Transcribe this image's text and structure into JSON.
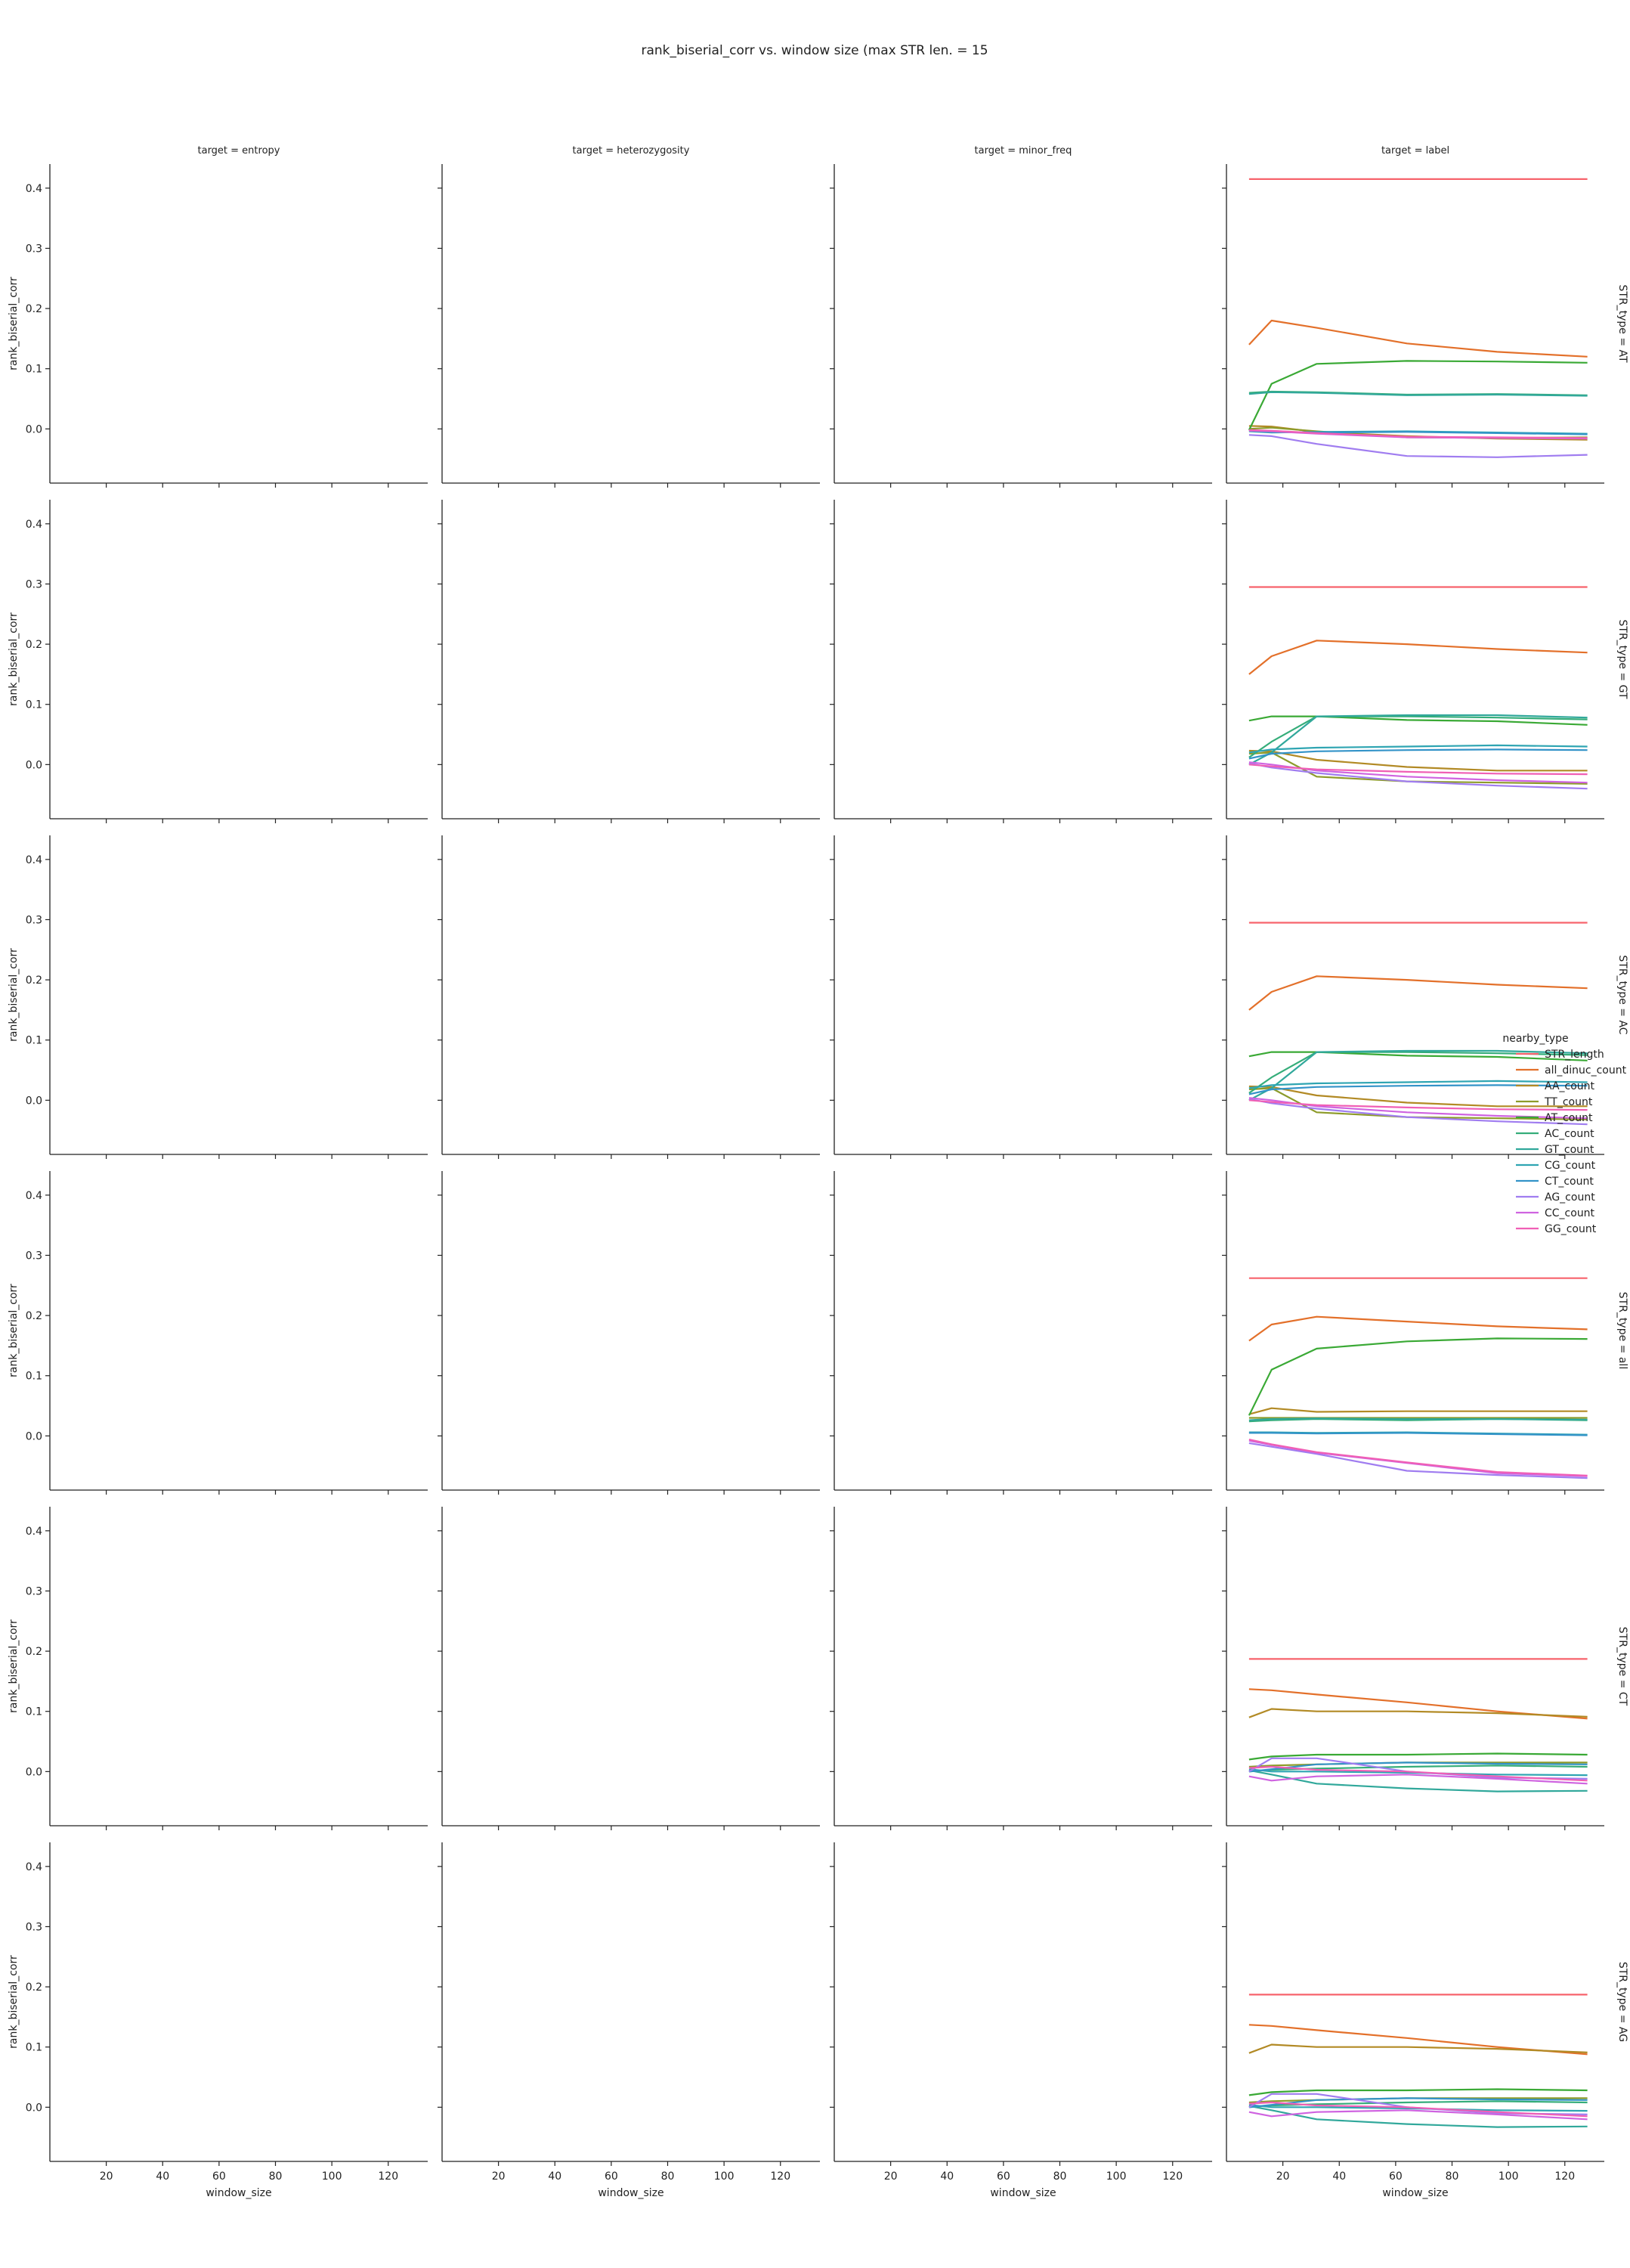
{
  "chart_data": {
    "type": "line",
    "title": "rank_biserial_corr vs. window size (max STR len. = 15",
    "xlabel": "window_size",
    "ylabel": "rank_biserial_corr",
    "xlim": [
      0,
      134
    ],
    "ylim": [
      -0.09,
      0.44
    ],
    "x_ticks": [
      20,
      40,
      60,
      80,
      100,
      120
    ],
    "y_ticks": [
      0.0,
      0.1,
      0.2,
      0.3,
      0.4
    ],
    "col_titles": [
      "target = entropy",
      "target = heterozygosity",
      "target = minor_freq",
      "target = label"
    ],
    "row_titles": [
      "STR_type = AT",
      "STR_type = GT",
      "STR_type = AC",
      "STR_type = all",
      "STR_type = CT",
      "STR_type = AG"
    ],
    "legend": {
      "title": "nearby_type",
      "position": "center-right",
      "entries": [
        {
          "label": "STR_length",
          "color": "#f7636c"
        },
        {
          "label": "all_dinuc_count",
          "color": "#e3702a"
        },
        {
          "label": "AA_count",
          "color": "#b28a25"
        },
        {
          "label": "TT_count",
          "color": "#8d9b2a"
        },
        {
          "label": "AT_count",
          "color": "#3aa935"
        },
        {
          "label": "AC_count",
          "color": "#35ad7a"
        },
        {
          "label": "GT_count",
          "color": "#31a89b"
        },
        {
          "label": "CG_count",
          "color": "#2fa5b2"
        },
        {
          "label": "CT_count",
          "color": "#3393c8"
        },
        {
          "label": "AG_count",
          "color": "#a07df0"
        },
        {
          "label": "CC_count",
          "color": "#cf63e0"
        },
        {
          "label": "GG_count",
          "color": "#f05fb5"
        }
      ]
    },
    "x": [
      8,
      16,
      32,
      64,
      96,
      128
    ],
    "facets": [
      {
        "row": "STR_type = AT",
        "col": "target = label",
        "series": [
          {
            "name": "STR_length",
            "values": [
              0.415,
              0.415,
              0.415,
              0.415,
              0.415,
              0.415
            ]
          },
          {
            "name": "all_dinuc_count",
            "values": [
              0.14,
              0.18,
              0.168,
              0.142,
              0.128,
              0.12
            ]
          },
          {
            "name": "AA_count",
            "values": [
              0.005,
              0.004,
              -0.005,
              -0.012,
              -0.016,
              -0.018
            ]
          },
          {
            "name": "TT_count",
            "values": [
              0.0,
              0.002,
              -0.004,
              -0.014,
              -0.015,
              -0.014
            ]
          },
          {
            "name": "AT_count",
            "values": [
              -0.002,
              0.075,
              0.108,
              0.113,
              0.112,
              0.11
            ]
          },
          {
            "name": "AC_count",
            "values": [
              0.06,
              0.062,
              0.061,
              0.057,
              0.058,
              0.056
            ]
          },
          {
            "name": "GT_count",
            "values": [
              0.058,
              0.061,
              0.06,
              0.056,
              0.057,
              0.055
            ]
          },
          {
            "name": "CG_count",
            "values": [
              -0.004,
              -0.006,
              -0.005,
              -0.004,
              -0.006,
              -0.008
            ]
          },
          {
            "name": "CT_count",
            "values": [
              -0.003,
              -0.005,
              -0.006,
              -0.005,
              -0.007,
              -0.009
            ]
          },
          {
            "name": "AG_count",
            "values": [
              -0.01,
              -0.012,
              -0.025,
              -0.045,
              -0.047,
              -0.043
            ]
          },
          {
            "name": "CC_count",
            "values": [
              -0.003,
              -0.004,
              -0.008,
              -0.014,
              -0.015,
              -0.016
            ]
          },
          {
            "name": "GG_count",
            "values": [
              -0.002,
              -0.003,
              -0.007,
              -0.013,
              -0.014,
              -0.015
            ]
          }
        ]
      },
      {
        "row": "STR_type = GT",
        "col": "target = label",
        "series": [
          {
            "name": "STR_length",
            "values": [
              0.295,
              0.295,
              0.295,
              0.295,
              0.295,
              0.295
            ]
          },
          {
            "name": "all_dinuc_count",
            "values": [
              0.15,
              0.18,
              0.206,
              0.2,
              0.192,
              0.186
            ]
          },
          {
            "name": "AA_count",
            "values": [
              0.023,
              0.022,
              0.008,
              -0.004,
              -0.01,
              -0.01
            ]
          },
          {
            "name": "TT_count",
            "values": [
              0.018,
              0.02,
              -0.02,
              -0.028,
              -0.03,
              -0.032
            ]
          },
          {
            "name": "AT_count",
            "values": [
              0.073,
              0.08,
              0.08,
              0.074,
              0.072,
              0.066
            ]
          },
          {
            "name": "AC_count",
            "values": [
              0.012,
              0.038,
              0.08,
              0.08,
              0.078,
              0.075
            ]
          },
          {
            "name": "GT_count",
            "values": [
              0.0,
              0.02,
              0.08,
              0.082,
              0.082,
              0.078
            ]
          },
          {
            "name": "CG_count",
            "values": [
              0.02,
              0.025,
              0.028,
              0.03,
              0.032,
              0.03
            ]
          },
          {
            "name": "CT_count",
            "values": [
              0.01,
              0.018,
              0.022,
              0.024,
              0.025,
              0.024
            ]
          },
          {
            "name": "AG_count",
            "values": [
              0.002,
              -0.005,
              -0.014,
              -0.028,
              -0.035,
              -0.04
            ]
          },
          {
            "name": "CC_count",
            "values": [
              0.004,
              0.0,
              -0.01,
              -0.02,
              -0.026,
              -0.03
            ]
          },
          {
            "name": "GG_count",
            "values": [
              0.0,
              -0.003,
              -0.008,
              -0.012,
              -0.015,
              -0.016
            ]
          }
        ]
      },
      {
        "row": "STR_type = AC",
        "col": "target = label",
        "series": [
          {
            "name": "STR_length",
            "values": [
              0.295,
              0.295,
              0.295,
              0.295,
              0.295,
              0.295
            ]
          },
          {
            "name": "all_dinuc_count",
            "values": [
              0.15,
              0.18,
              0.206,
              0.2,
              0.192,
              0.186
            ]
          },
          {
            "name": "AA_count",
            "values": [
              0.023,
              0.022,
              0.008,
              -0.004,
              -0.01,
              -0.01
            ]
          },
          {
            "name": "TT_count",
            "values": [
              0.018,
              0.02,
              -0.02,
              -0.028,
              -0.03,
              -0.032
            ]
          },
          {
            "name": "AT_count",
            "values": [
              0.073,
              0.08,
              0.08,
              0.074,
              0.072,
              0.066
            ]
          },
          {
            "name": "AC_count",
            "values": [
              0.012,
              0.038,
              0.08,
              0.08,
              0.078,
              0.075
            ]
          },
          {
            "name": "GT_count",
            "values": [
              0.0,
              0.02,
              0.08,
              0.082,
              0.082,
              0.078
            ]
          },
          {
            "name": "CG_count",
            "values": [
              0.02,
              0.025,
              0.028,
              0.03,
              0.032,
              0.03
            ]
          },
          {
            "name": "CT_count",
            "values": [
              0.01,
              0.018,
              0.022,
              0.024,
              0.025,
              0.024
            ]
          },
          {
            "name": "AG_count",
            "values": [
              0.002,
              -0.005,
              -0.014,
              -0.028,
              -0.035,
              -0.04
            ]
          },
          {
            "name": "CC_count",
            "values": [
              0.004,
              0.0,
              -0.01,
              -0.02,
              -0.026,
              -0.03
            ]
          },
          {
            "name": "GG_count",
            "values": [
              0.0,
              -0.003,
              -0.008,
              -0.012,
              -0.015,
              -0.016
            ]
          }
        ]
      },
      {
        "row": "STR_type = all",
        "col": "target = label",
        "series": [
          {
            "name": "STR_length",
            "values": [
              0.262,
              0.262,
              0.262,
              0.262,
              0.262,
              0.262
            ]
          },
          {
            "name": "all_dinuc_count",
            "values": [
              0.158,
              0.185,
              0.198,
              0.19,
              0.182,
              0.177
            ]
          },
          {
            "name": "AA_count",
            "values": [
              0.036,
              0.046,
              0.04,
              0.041,
              0.041,
              0.041
            ]
          },
          {
            "name": "TT_count",
            "values": [
              0.03,
              0.03,
              0.03,
              0.03,
              0.03,
              0.03
            ]
          },
          {
            "name": "AT_count",
            "values": [
              0.034,
              0.11,
              0.145,
              0.157,
              0.162,
              0.161
            ]
          },
          {
            "name": "AC_count",
            "values": [
              0.024,
              0.026,
              0.028,
              0.026,
              0.028,
              0.026
            ]
          },
          {
            "name": "GT_count",
            "values": [
              0.026,
              0.028,
              0.029,
              0.028,
              0.028,
              0.027
            ]
          },
          {
            "name": "CG_count",
            "values": [
              0.006,
              0.006,
              0.005,
              0.006,
              0.004,
              0.002
            ]
          },
          {
            "name": "CT_count",
            "values": [
              0.005,
              0.005,
              0.004,
              0.005,
              0.003,
              0.001
            ]
          },
          {
            "name": "AG_count",
            "values": [
              -0.012,
              -0.018,
              -0.03,
              -0.058,
              -0.065,
              -0.07
            ]
          },
          {
            "name": "CC_count",
            "values": [
              -0.008,
              -0.015,
              -0.028,
              -0.045,
              -0.062,
              -0.067
            ]
          },
          {
            "name": "GG_count",
            "values": [
              -0.006,
              -0.014,
              -0.027,
              -0.044,
              -0.06,
              -0.066
            ]
          }
        ]
      },
      {
        "row": "STR_type = CT",
        "col": "target = label",
        "series": [
          {
            "name": "STR_length",
            "values": [
              0.187,
              0.187,
              0.187,
              0.187,
              0.187,
              0.187
            ]
          },
          {
            "name": "all_dinuc_count",
            "values": [
              0.137,
              0.135,
              0.128,
              0.115,
              0.1,
              0.088
            ]
          },
          {
            "name": "AA_count",
            "values": [
              0.09,
              0.104,
              0.1,
              0.1,
              0.097,
              0.091
            ]
          },
          {
            "name": "TT_count",
            "values": [
              0.008,
              0.01,
              0.012,
              0.015,
              0.015,
              0.015
            ]
          },
          {
            "name": "AT_count",
            "values": [
              0.02,
              0.025,
              0.028,
              0.028,
              0.03,
              0.028
            ]
          },
          {
            "name": "AC_count",
            "values": [
              0.0,
              0.003,
              0.005,
              0.008,
              0.01,
              0.008
            ]
          },
          {
            "name": "GT_count",
            "values": [
              0.002,
              -0.005,
              -0.02,
              -0.028,
              -0.033,
              -0.032
            ]
          },
          {
            "name": "CG_count",
            "values": [
              0.004,
              0.0,
              0.0,
              -0.002,
              -0.005,
              -0.006
            ]
          },
          {
            "name": "CT_count",
            "values": [
              0.0,
              0.004,
              0.012,
              0.015,
              0.013,
              0.012
            ]
          },
          {
            "name": "AG_count",
            "values": [
              0.0,
              0.022,
              0.022,
              0.0,
              -0.01,
              -0.012
            ]
          },
          {
            "name": "CC_count",
            "values": [
              -0.008,
              -0.015,
              -0.008,
              -0.005,
              -0.012,
              -0.02
            ]
          },
          {
            "name": "GG_count",
            "values": [
              0.006,
              0.008,
              0.003,
              0.0,
              -0.008,
              -0.015
            ]
          }
        ]
      },
      {
        "row": "STR_type = AG",
        "col": "target = label",
        "series": [
          {
            "name": "STR_length",
            "values": [
              0.187,
              0.187,
              0.187,
              0.187,
              0.187,
              0.187
            ]
          },
          {
            "name": "all_dinuc_count",
            "values": [
              0.137,
              0.135,
              0.128,
              0.115,
              0.1,
              0.088
            ]
          },
          {
            "name": "AA_count",
            "values": [
              0.09,
              0.104,
              0.1,
              0.1,
              0.097,
              0.091
            ]
          },
          {
            "name": "TT_count",
            "values": [
              0.008,
              0.01,
              0.012,
              0.015,
              0.015,
              0.015
            ]
          },
          {
            "name": "AT_count",
            "values": [
              0.02,
              0.025,
              0.028,
              0.028,
              0.03,
              0.028
            ]
          },
          {
            "name": "AC_count",
            "values": [
              0.0,
              0.003,
              0.005,
              0.008,
              0.01,
              0.008
            ]
          },
          {
            "name": "GT_count",
            "values": [
              0.002,
              -0.005,
              -0.02,
              -0.028,
              -0.033,
              -0.032
            ]
          },
          {
            "name": "CG_count",
            "values": [
              0.004,
              0.0,
              0.0,
              -0.002,
              -0.005,
              -0.006
            ]
          },
          {
            "name": "CT_count",
            "values": [
              0.0,
              0.004,
              0.012,
              0.015,
              0.013,
              0.012
            ]
          },
          {
            "name": "AG_count",
            "values": [
              0.0,
              0.022,
              0.022,
              0.0,
              -0.01,
              -0.012
            ]
          },
          {
            "name": "CC_count",
            "values": [
              -0.008,
              -0.015,
              -0.008,
              -0.005,
              -0.012,
              -0.02
            ]
          },
          {
            "name": "GG_count",
            "values": [
              0.006,
              0.008,
              0.003,
              0.0,
              -0.008,
              -0.015
            ]
          }
        ]
      }
    ]
  }
}
